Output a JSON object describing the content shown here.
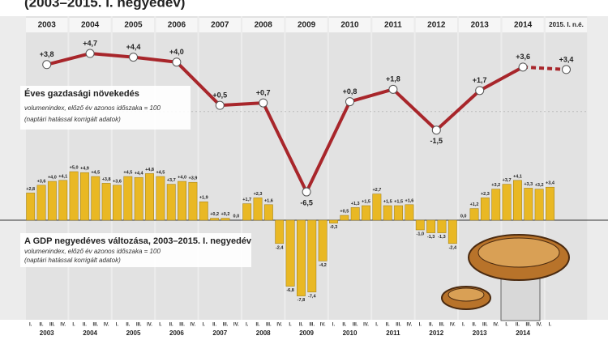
{
  "title": "(2003–2015. I. negyedév)",
  "chart_data": [
    {
      "type": "line",
      "title": "Éves gazdasági növekedés",
      "subtitle": [
        "volumenindex, előző év azonos időszaka = 100",
        "(naptári hatással korrigált adatok)"
      ],
      "categories": [
        "2003",
        "2004",
        "2005",
        "2006",
        "2007",
        "2008",
        "2009",
        "2010",
        "2011",
        "2012",
        "2013",
        "2014",
        "2015. I. n.é."
      ],
      "values": [
        3.8,
        4.7,
        4.4,
        4.0,
        0.5,
        0.7,
        -6.5,
        0.8,
        1.8,
        -1.5,
        1.7,
        3.6,
        3.4
      ],
      "value_labels": [
        "+3,8",
        "+4,7",
        "+4,4",
        "+4,0",
        "+0,5",
        "+0,7",
        "-6,5",
        "+0,8",
        "+1,8",
        "-1,5",
        "+1,7",
        "+3,6",
        "+3,4"
      ],
      "color": "#a8262b"
    },
    {
      "type": "bar",
      "title": "A GDP negyedéves változása, 2003–2015. I. negyedév",
      "subtitle": [
        "volumenindex, előző év azonos időszaka = 100",
        "(naptári hatással korrigált adatok)"
      ],
      "categories": [
        "I.",
        "II.",
        "III.",
        "IV.",
        "I.",
        "II.",
        "III.",
        "IV.",
        "I.",
        "II.",
        "III.",
        "IV.",
        "I.",
        "II.",
        "III.",
        "IV.",
        "I.",
        "II.",
        "III.",
        "IV.",
        "I.",
        "II.",
        "III.",
        "IV.",
        "I.",
        "II.",
        "III.",
        "IV.",
        "I.",
        "II.",
        "III.",
        "IV.",
        "I.",
        "II.",
        "III.",
        "IV.",
        "I.",
        "II.",
        "III.",
        "IV.",
        "I.",
        "II.",
        "III.",
        "IV.",
        "I.",
        "II.",
        "III.",
        "IV.",
        "I."
      ],
      "years": [
        "2003",
        "2004",
        "2005",
        "2006",
        "2007",
        "2008",
        "2009",
        "2010",
        "2011",
        "2012",
        "2013",
        "2014"
      ],
      "values": [
        2.8,
        3.6,
        4.0,
        4.1,
        5.0,
        4.9,
        4.5,
        3.8,
        3.6,
        4.5,
        4.4,
        4.8,
        4.5,
        3.7,
        4.0,
        3.9,
        1.9,
        0.2,
        0.2,
        0.0,
        1.7,
        2.3,
        1.6,
        -2.4,
        -6.8,
        -7.8,
        -7.4,
        -4.2,
        -0.3,
        0.5,
        1.3,
        1.5,
        2.7,
        1.5,
        1.5,
        1.6,
        -1.0,
        -1.3,
        -1.3,
        -2.4,
        0.0,
        1.2,
        2.3,
        3.2,
        3.7,
        4.1,
        3.3,
        3.2,
        3.4
      ],
      "value_labels": [
        "+2,8",
        "+3,6",
        "+4,0",
        "+4,1",
        "+5,0",
        "+4,9",
        "+4,5",
        "+3,8",
        "+3,6",
        "+4,5",
        "+4,4",
        "+4,8",
        "+4,5",
        "+3,7",
        "+4,0",
        "+3,9",
        "+1,9",
        "+0,2",
        "+0,2",
        "0,0",
        "+1,7",
        "+2,3",
        "+1,6",
        "-2,4",
        "-6,8",
        "-7,8",
        "-7,4",
        "-4,2",
        "-0,3",
        "+0,5",
        "+1,3",
        "+1,5",
        "+2,7",
        "+1,5",
        "+1,5",
        "+1,6",
        "-1,0",
        "-1,3",
        "-1,3",
        "-2,4",
        "0,0",
        "+1,2",
        "+2,3",
        "+3,2",
        "+3,7",
        "+4,1",
        "+3,3",
        "+3,2",
        "+3,4"
      ],
      "color": "#e9b824"
    }
  ]
}
